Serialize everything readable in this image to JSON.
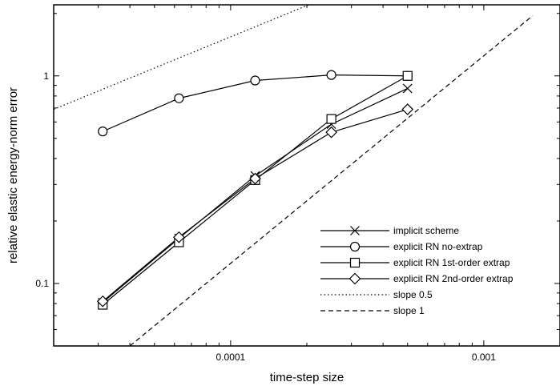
{
  "chart_data": {
    "type": "line",
    "xlabel": "time-step size",
    "ylabel": "relative elastic energy-norm error",
    "x_scale": "log",
    "y_scale": "log",
    "xlim": [
      2e-05,
      0.002
    ],
    "ylim": [
      0.05,
      2.2
    ],
    "x_ticks": [
      {
        "value": 0.0001,
        "label": "0.0001"
      },
      {
        "value": 0.001,
        "label": "0.001"
      }
    ],
    "y_ticks": [
      {
        "value": 0.1,
        "label": "0.1"
      },
      {
        "value": 1,
        "label": "1"
      }
    ],
    "grid": false,
    "legend_position": "bottom-right",
    "series": [
      {
        "name": "implicit scheme",
        "marker": "x",
        "line": "solid",
        "x": [
          3.125e-05,
          6.25e-05,
          0.000125,
          0.00025,
          0.0005
        ],
        "y": [
          0.081,
          0.165,
          0.33,
          0.585,
          0.87
        ]
      },
      {
        "name": "explicit RN no-extrap",
        "marker": "circle",
        "line": "solid",
        "x": [
          3.125e-05,
          6.25e-05,
          0.000125,
          0.00025,
          0.0005
        ],
        "y": [
          0.54,
          0.78,
          0.95,
          1.01,
          1.0
        ]
      },
      {
        "name": "explicit RN 1st-order extrap",
        "marker": "square",
        "line": "solid",
        "x": [
          3.125e-05,
          6.25e-05,
          0.000125,
          0.00025,
          0.0005
        ],
        "y": [
          0.079,
          0.158,
          0.315,
          0.62,
          1.0
        ]
      },
      {
        "name": "explicit RN 2nd-order extrap",
        "marker": "diamond",
        "line": "solid",
        "x": [
          3.125e-05,
          6.25e-05,
          0.000125,
          0.00025,
          0.0005
        ],
        "y": [
          0.082,
          0.167,
          0.32,
          0.535,
          0.69
        ]
      },
      {
        "name": "slope 0.5",
        "marker": "none",
        "line": "dotted",
        "x": [
          2e-05,
          0.00148
        ],
        "y": [
          0.69,
          5.93
        ]
      },
      {
        "name": "slope 1",
        "marker": "none",
        "line": "dashed",
        "x": [
          4e-05,
          0.00156
        ],
        "y": [
          0.05,
          1.95
        ]
      }
    ]
  }
}
